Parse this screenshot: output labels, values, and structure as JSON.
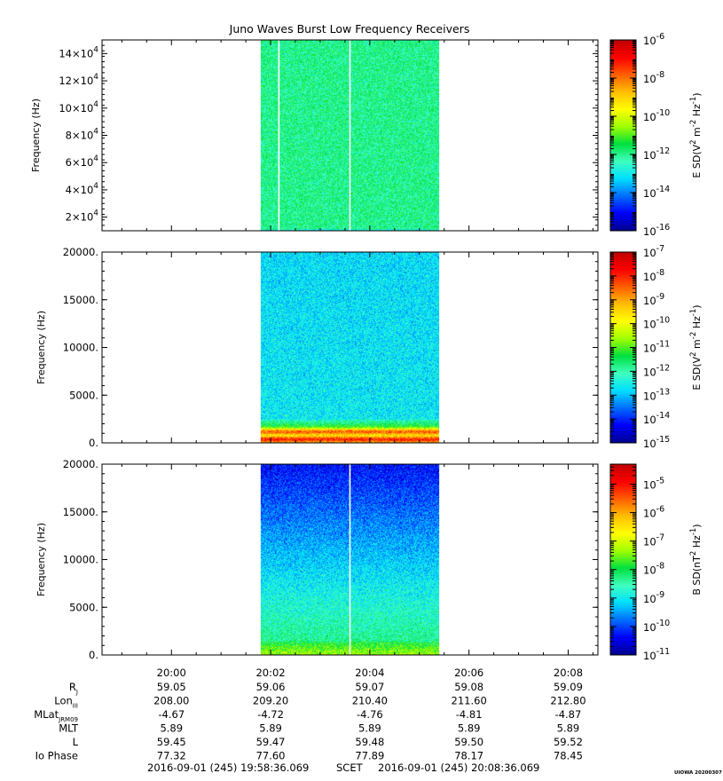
{
  "title": "Juno Waves Burst Low Frequency Receivers",
  "stamp": "UIOWA 20200307",
  "colors": {
    "axis": "#000000",
    "background": "#ffffff",
    "colormap": [
      "#00008f",
      "#0000ff",
      "#006fff",
      "#00dfff",
      "#40ffbf",
      "#00e040",
      "#9fff00",
      "#ffff00",
      "#ffbf00",
      "#ff6000",
      "#ff0000",
      "#c00000"
    ]
  },
  "chart_data": [
    {
      "type": "heatmap",
      "title": "Juno Waves Burst Low Frequency Receivers",
      "ylabel": "Frequency (Hz)",
      "y_ticks": [
        {
          "value": 20000,
          "mantissa": "2×10",
          "exp": "4"
        },
        {
          "value": 40000,
          "mantissa": "4×10",
          "exp": "4"
        },
        {
          "value": 60000,
          "mantissa": "6×10",
          "exp": "4"
        },
        {
          "value": 80000,
          "mantissa": "8×10",
          "exp": "4"
        },
        {
          "value": 100000,
          "mantissa": "10×10",
          "exp": "4"
        },
        {
          "value": 120000,
          "mantissa": "12×10",
          "exp": "4"
        },
        {
          "value": 140000,
          "mantissa": "14×10",
          "exp": "4"
        }
      ],
      "ylim": [
        10000,
        150000
      ],
      "data_time_range": [
        "20:01:48",
        "20:05:24"
      ],
      "gaps": [
        "20:02:10",
        "20:03:36"
      ],
      "spectrum": {
        "base_level": 0.4,
        "top_level": 0.4,
        "low_band_level": 0.1,
        "low_band_top": 11500
      },
      "colorbar": {
        "label": "E SD (V² m⁻² Hz⁻¹)",
        "label_parts": [
          "E SD(V",
          "2",
          " m",
          "-2",
          " Hz",
          "-1",
          ")"
        ],
        "log_min": -16,
        "log_max": -6,
        "ticks": [
          {
            "base": "10",
            "exp": "-6",
            "value": -6
          },
          {
            "base": "10",
            "exp": "-8",
            "value": -8
          },
          {
            "base": "10",
            "exp": "-10",
            "value": -10
          },
          {
            "base": "10",
            "exp": "-12",
            "value": -12
          },
          {
            "base": "10",
            "exp": "-14",
            "value": -14
          },
          {
            "base": "10",
            "exp": "-16",
            "value": -16
          }
        ]
      }
    },
    {
      "type": "heatmap",
      "ylabel": "Frequency (Hz)",
      "y_ticks": [
        {
          "value": 0,
          "label": "0."
        },
        {
          "value": 5000,
          "label": "5000."
        },
        {
          "value": 10000,
          "label": "10000."
        },
        {
          "value": 15000,
          "label": "15000."
        },
        {
          "value": 20000,
          "label": "20000."
        }
      ],
      "ylim": [
        0,
        20000
      ],
      "data_time_range": [
        "20:01:48",
        "20:05:24"
      ],
      "gaps": [],
      "spectrum": {
        "base_level": 0.3,
        "top_level": 0.28,
        "low_band_level": 0.62,
        "low_band_top": 2500,
        "emission_lines": [
          {
            "freq": 1150,
            "level": 0.82
          },
          {
            "freq": 350,
            "level": 0.88
          }
        ]
      },
      "colorbar": {
        "label": "E SD (V² m⁻² Hz⁻¹)",
        "label_parts": [
          "E SD(V",
          "2",
          " m",
          "-2",
          " Hz",
          "-1",
          ")"
        ],
        "log_min": -15,
        "log_max": -7,
        "ticks": [
          {
            "base": "10",
            "exp": "-7",
            "value": -7
          },
          {
            "base": "10",
            "exp": "-8",
            "value": -8
          },
          {
            "base": "10",
            "exp": "-9",
            "value": -9
          },
          {
            "base": "10",
            "exp": "-10",
            "value": -10
          },
          {
            "base": "10",
            "exp": "-11",
            "value": -11
          },
          {
            "base": "10",
            "exp": "-12",
            "value": -12
          },
          {
            "base": "10",
            "exp": "-13",
            "value": -13
          },
          {
            "base": "10",
            "exp": "-14",
            "value": -14
          },
          {
            "base": "10",
            "exp": "-15",
            "value": -15
          }
        ]
      }
    },
    {
      "type": "heatmap",
      "ylabel": "Frequency (Hz)",
      "y_ticks": [
        {
          "value": 0,
          "label": "0."
        },
        {
          "value": 5000,
          "label": "5000."
        },
        {
          "value": 10000,
          "label": "10000."
        },
        {
          "value": 15000,
          "label": "15000."
        },
        {
          "value": 20000,
          "label": "20000."
        }
      ],
      "ylim": [
        0,
        20000
      ],
      "data_time_range": [
        "20:01:48",
        "20:05:24"
      ],
      "gaps": [
        "20:03:36"
      ],
      "spectrum": {
        "base_level": 0.42,
        "top_level": 0.1,
        "low_band_level": 0.55,
        "low_band_top": 1500
      },
      "colorbar": {
        "label": "B SD (nT² Hz⁻¹)",
        "label_parts": [
          "B SD(nT",
          "2",
          " Hz",
          "-1",
          ")"
        ],
        "log_min": -11,
        "log_max": -4.3,
        "ticks": [
          {
            "base": "10",
            "exp": "-5",
            "value": -5
          },
          {
            "base": "10",
            "exp": "-6",
            "value": -6
          },
          {
            "base": "10",
            "exp": "-7",
            "value": -7
          },
          {
            "base": "10",
            "exp": "-8",
            "value": -8
          },
          {
            "base": "10",
            "exp": "-9",
            "value": -9
          },
          {
            "base": "10",
            "exp": "-10",
            "value": -10
          },
          {
            "base": "10",
            "exp": "-11",
            "value": -11
          }
        ]
      }
    }
  ],
  "time_axis": {
    "start": "19:58:36",
    "end": "20:08:36",
    "tick_labels": [
      "20:00",
      "20:02",
      "20:04",
      "20:06",
      "20:08"
    ]
  },
  "ephemeris": {
    "rows": [
      {
        "label": "R",
        "sub": "J",
        "values": [
          "59.05",
          "59.06",
          "59.07",
          "59.08",
          "59.09"
        ]
      },
      {
        "label": "Lon",
        "sub": "III",
        "values": [
          "208.00",
          "209.20",
          "210.40",
          "211.60",
          "212.80"
        ]
      },
      {
        "label": "MLat",
        "sub": "JRM09",
        "values": [
          "-4.67",
          "-4.72",
          "-4.76",
          "-4.81",
          "-4.87"
        ]
      },
      {
        "label": "MLT",
        "sub": "",
        "values": [
          "5.89",
          "5.89",
          "5.89",
          "5.89",
          "5.89"
        ]
      },
      {
        "label": "L",
        "sub": "",
        "values": [
          "59.45",
          "59.47",
          "59.48",
          "59.50",
          "59.52"
        ]
      },
      {
        "label": "Io Phase",
        "sub": "",
        "values": [
          "77.32",
          "77.60",
          "77.89",
          "78.17",
          "78.45"
        ]
      }
    ]
  },
  "footer": {
    "start": "2016-09-01 (245) 19:58:36.069",
    "middle": "SCET",
    "end": "2016-09-01 (245) 20:08:36.069"
  }
}
